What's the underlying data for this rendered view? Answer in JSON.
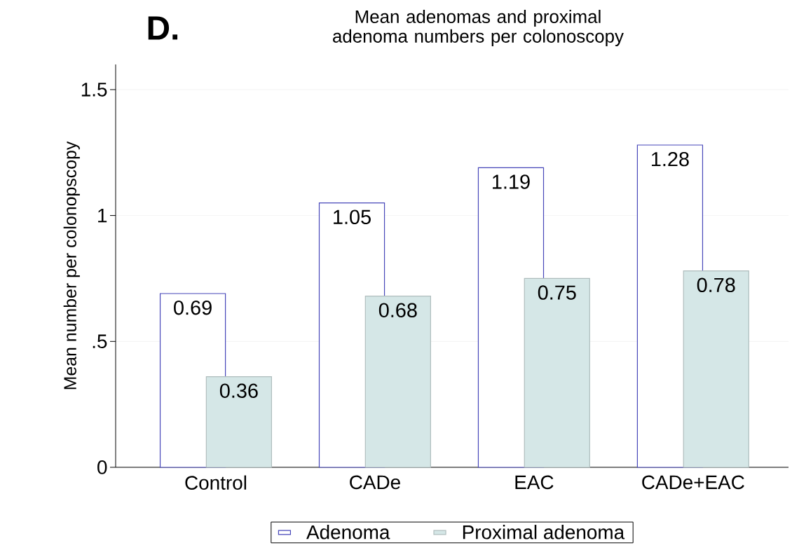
{
  "chart_data": {
    "type": "bar",
    "title": "Mean adenomas and proximal adenoma numbers per colonoscopy",
    "ylabel": "Mean number per colonopscopy",
    "annotations": [
      "D."
    ],
    "categories": [
      "Control",
      "CADe",
      "EAC",
      "CADe+EAC"
    ],
    "series": [
      {
        "name": "Adenoma",
        "color": "#ffffff",
        "values": [
          0.69,
          1.05,
          1.19,
          1.28
        ]
      },
      {
        "name": "Proximal adenoma",
        "color": "#d5e7e7",
        "values": [
          0.36,
          0.68,
          0.75,
          0.78
        ]
      }
    ],
    "ylim": [
      0,
      1.6
    ],
    "yticks": [
      0,
      {
        "value": 0.5,
        "label": ".5"
      },
      1,
      1.5
    ],
    "grid": "y",
    "legend": "bottom",
    "data_labels": true
  }
}
